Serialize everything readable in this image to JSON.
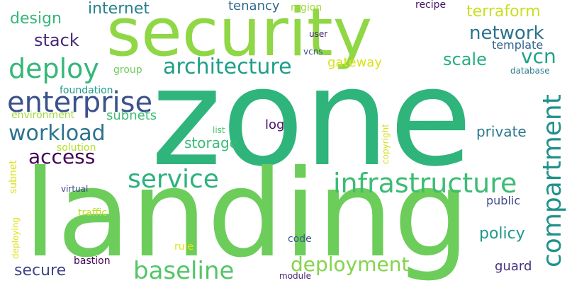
{
  "words": [
    {
      "text": "zone",
      "color": "#2fb47c"
    },
    {
      "text": "landing",
      "color": "#6ccd5a"
    },
    {
      "text": "security",
      "color": "#8fd744"
    },
    {
      "text": "enterprise",
      "color": "#3b528b"
    },
    {
      "text": "compartment",
      "color": "#21918c"
    },
    {
      "text": "infrastructure",
      "color": "#3dbc74"
    },
    {
      "text": "deploy",
      "color": "#35b779"
    },
    {
      "text": "architecture",
      "color": "#1f9e89"
    },
    {
      "text": "service",
      "color": "#2db27d"
    },
    {
      "text": "baseline",
      "color": "#54c568"
    },
    {
      "text": "workload",
      "color": "#2c728e"
    },
    {
      "text": "deployment",
      "color": "#84d44b"
    },
    {
      "text": "access",
      "color": "#440154"
    },
    {
      "text": "network",
      "color": "#2c728e"
    },
    {
      "text": "vcn",
      "color": "#20a386"
    },
    {
      "text": "stack",
      "color": "#482878"
    },
    {
      "text": "scale",
      "color": "#27ad81"
    },
    {
      "text": "internet",
      "color": "#26828e"
    },
    {
      "text": "terraform",
      "color": "#c8e020"
    },
    {
      "text": "design",
      "color": "#35b779"
    },
    {
      "text": "tenancy",
      "color": "#306a8e"
    },
    {
      "text": "gateway",
      "color": "#d8e219"
    },
    {
      "text": "policy",
      "color": "#1f988b"
    },
    {
      "text": "secure",
      "color": "#414487"
    },
    {
      "text": "private",
      "color": "#2a788e"
    },
    {
      "text": "storage",
      "color": "#3aba76"
    },
    {
      "text": "template",
      "color": "#33638d"
    },
    {
      "text": "log",
      "color": "#481467"
    },
    {
      "text": "subnets",
      "color": "#3dbc74"
    },
    {
      "text": "public",
      "color": "#3e4a89"
    },
    {
      "text": "guard",
      "color": "#46327e"
    },
    {
      "text": "foundation",
      "color": "#1f9e89"
    },
    {
      "text": "group",
      "color": "#6ccd5a"
    },
    {
      "text": "environment",
      "color": "#a0da39"
    },
    {
      "text": "solution",
      "color": "#b5de2b"
    },
    {
      "text": "bastion",
      "color": "#440154"
    },
    {
      "text": "region",
      "color": "#a0da39"
    },
    {
      "text": "recipe",
      "color": "#471164"
    },
    {
      "text": "user",
      "color": "#482475"
    },
    {
      "text": "vcns",
      "color": "#3b528b"
    },
    {
      "text": "database",
      "color": "#297b8e"
    },
    {
      "text": "copyright",
      "color": "#d0e11c"
    },
    {
      "text": "list",
      "color": "#4ac16d"
    },
    {
      "text": "virtual",
      "color": "#3e4989"
    },
    {
      "text": "traffic",
      "color": "#bddf26"
    },
    {
      "text": "code",
      "color": "#39568c"
    },
    {
      "text": "rule",
      "color": "#e5e419"
    },
    {
      "text": "subnet",
      "color": "#d8e219"
    },
    {
      "text": "deploying",
      "color": "#dde318"
    },
    {
      "text": "module",
      "color": "#482475"
    }
  ]
}
